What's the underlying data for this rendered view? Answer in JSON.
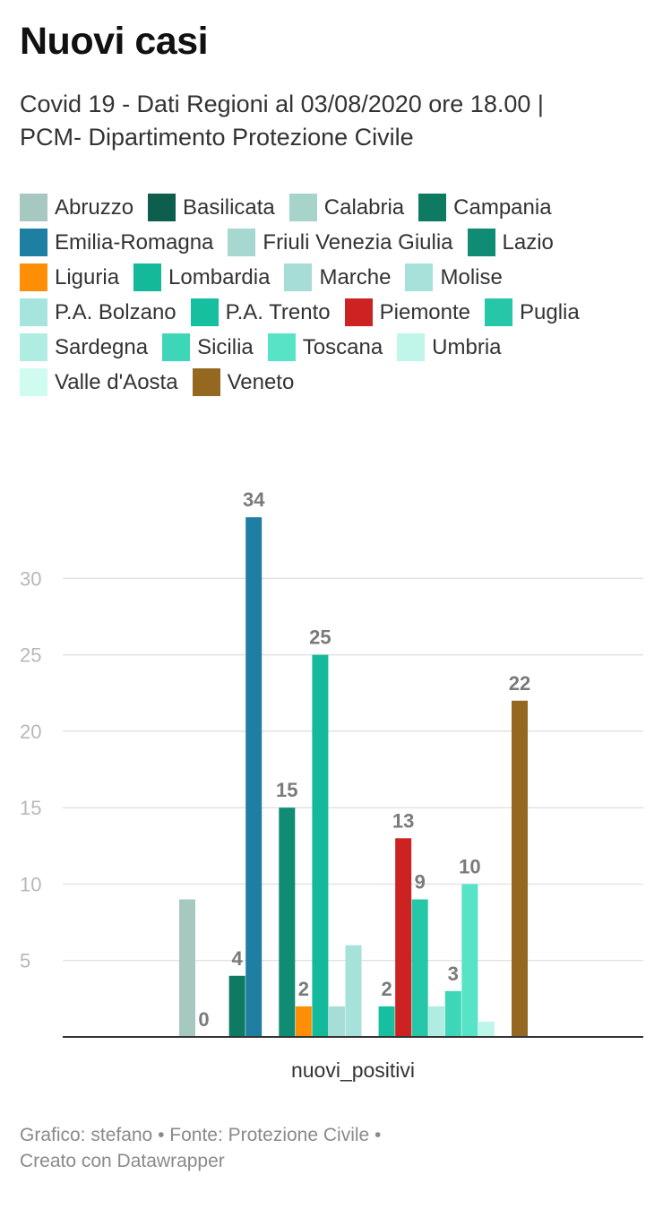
{
  "header": {
    "title": "Nuovi casi",
    "subtitle_line1": "Covid 19 - Dati Regioni al 03/08/2020 ore 18.00 |",
    "subtitle_line2": "PCM- Dipartimento Protezione Civile"
  },
  "chart_data": {
    "type": "bar",
    "categories": [
      "nuovi_positivi"
    ],
    "xlabel": "nuovi_positivi",
    "ylabel": "",
    "ylim": [
      0,
      37
    ],
    "yticks": [
      5,
      10,
      15,
      20,
      25,
      30
    ],
    "grid": true,
    "legend_position": "top",
    "series": [
      {
        "name": "Abruzzo",
        "value": 9,
        "color": "#a6c8c0",
        "show_label": false
      },
      {
        "name": "Basilicata",
        "value": 0,
        "color": "#0d5e4d",
        "show_label": true
      },
      {
        "name": "Calabria",
        "value": 0,
        "color": "#a6d4cb",
        "show_label": false
      },
      {
        "name": "Campania",
        "value": 4,
        "color": "#0e7a62",
        "show_label": true
      },
      {
        "name": "Emilia-Romagna",
        "value": 34,
        "color": "#1f7fa3",
        "show_label": true
      },
      {
        "name": "Friuli Venezia Giulia",
        "value": 0,
        "color": "#a6d8cf",
        "show_label": false
      },
      {
        "name": "Lazio",
        "value": 15,
        "color": "#0f8c73",
        "show_label": true
      },
      {
        "name": "Liguria",
        "value": 2,
        "color": "#fd8e06",
        "show_label": true
      },
      {
        "name": "Lombardia",
        "value": 25,
        "color": "#14b89a",
        "show_label": true
      },
      {
        "name": "Marche",
        "value": 2,
        "color": "#a6ddd6",
        "show_label": false
      },
      {
        "name": "Molise",
        "value": 6,
        "color": "#a6e1da",
        "show_label": false
      },
      {
        "name": "P.A. Bolzano",
        "value": 0,
        "color": "#a6e5dd",
        "show_label": false
      },
      {
        "name": "P.A. Trento",
        "value": 2,
        "color": "#15bfa0",
        "show_label": true
      },
      {
        "name": "Piemonte",
        "value": 13,
        "color": "#cc2222",
        "show_label": true
      },
      {
        "name": "Puglia",
        "value": 9,
        "color": "#26c6a8",
        "show_label": true
      },
      {
        "name": "Sardegna",
        "value": 2,
        "color": "#b0ece1",
        "show_label": false
      },
      {
        "name": "Sicilia",
        "value": 3,
        "color": "#3ed6b8",
        "show_label": true
      },
      {
        "name": "Toscana",
        "value": 10,
        "color": "#57e3c6",
        "show_label": true
      },
      {
        "name": "Umbria",
        "value": 1,
        "color": "#c0f5ea",
        "show_label": false
      },
      {
        "name": "Valle d'Aosta",
        "value": 0,
        "color": "#cffbf0",
        "show_label": false
      },
      {
        "name": "Veneto",
        "value": 22,
        "color": "#946820",
        "show_label": true
      }
    ]
  },
  "legend_rows": [
    [
      "Abruzzo",
      "Basilicata",
      "Calabria",
      "Campania"
    ],
    [
      "Emilia-Romagna",
      "Friuli Venezia Giulia",
      "Lazio"
    ],
    [
      "Liguria",
      "Lombardia",
      "Marche",
      "Molise"
    ],
    [
      "P.A. Bolzano",
      "P.A. Trento",
      "Piemonte",
      "Puglia"
    ],
    [
      "Sardegna",
      "Sicilia",
      "Toscana",
      "Umbria"
    ],
    [
      "Valle d'Aosta",
      "Veneto"
    ]
  ],
  "footer": {
    "line1": "Grafico: stefano • Fonte: Protezione Civile •",
    "line2": "Creato con Datawrapper"
  }
}
